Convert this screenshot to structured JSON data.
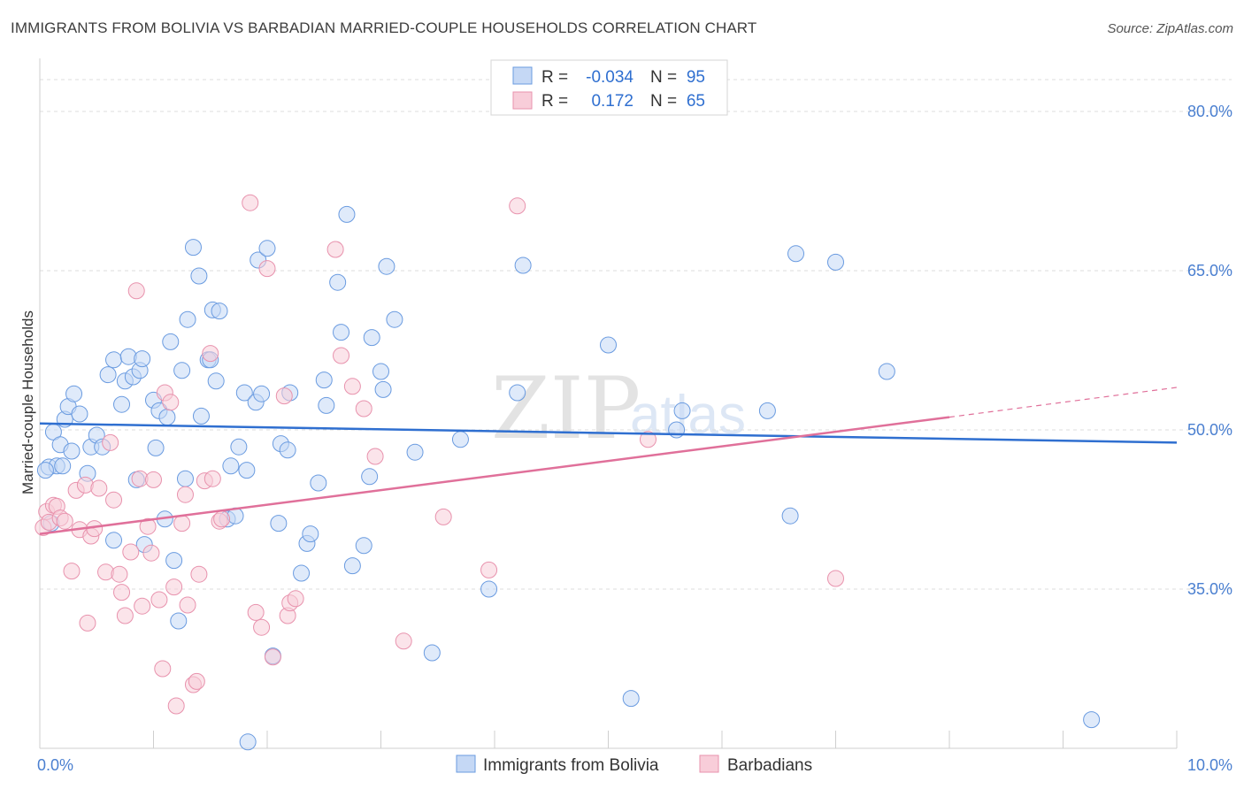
{
  "title": "IMMIGRANTS FROM BOLIVIA VS BARBADIAN MARRIED-COUPLE HOUSEHOLDS CORRELATION CHART",
  "source": "Source: ZipAtlas.com",
  "watermark": {
    "zip": "ZIP",
    "atlas": "atlas"
  },
  "legend_stats": [
    {
      "r_label": "R =",
      "r_value": "-0.034",
      "n_label": "N =",
      "n_value": "95"
    },
    {
      "r_label": "R =",
      "r_value": "0.172",
      "n_label": "N =",
      "n_value": "65"
    }
  ],
  "colors": {
    "bolivia_fill": "#c5d8f5",
    "bolivia_stroke": "#6a9be0",
    "bolivia_line": "#2f6fd0",
    "barbadian_fill": "#f8cdd9",
    "barbadian_stroke": "#e892ad",
    "barbadian_line": "#e0709a",
    "grid": "#dcdcdc",
    "tick_text": "#4a7fd0"
  },
  "chart_data": {
    "type": "scatter",
    "xlabel": "",
    "ylabel": "Married-couple Households",
    "xlim": [
      0,
      10
    ],
    "ylim": [
      20,
      84
    ],
    "x_tick_labels": [
      {
        "value": 0,
        "label": "0.0%"
      },
      {
        "value": 10,
        "label": "10.0%"
      }
    ],
    "y_tick_labels": [
      {
        "value": 35,
        "label": "35.0%"
      },
      {
        "value": 50,
        "label": "50.0%"
      },
      {
        "value": 65,
        "label": "65.0%"
      },
      {
        "value": 80,
        "label": "80.0%"
      }
    ],
    "grid": true,
    "legend_position": "top-center",
    "series": [
      {
        "name": "Immigrants from Bolivia",
        "trend": {
          "x": [
            0,
            10
          ],
          "y": [
            50.6,
            48.8
          ]
        },
        "points": [
          [
            0.08,
            46.5
          ],
          [
            0.12,
            49.8
          ],
          [
            0.15,
            46.6
          ],
          [
            0.18,
            48.6
          ],
          [
            0.2,
            46.6
          ],
          [
            0.22,
            51.0
          ],
          [
            0.25,
            52.2
          ],
          [
            0.28,
            48.0
          ],
          [
            0.3,
            53.4
          ],
          [
            0.35,
            51.5
          ],
          [
            0.42,
            45.9
          ],
          [
            0.45,
            48.4
          ],
          [
            0.5,
            49.5
          ],
          [
            0.55,
            48.4
          ],
          [
            0.6,
            55.2
          ],
          [
            0.65,
            56.6
          ],
          [
            0.65,
            39.6
          ],
          [
            0.72,
            52.4
          ],
          [
            0.75,
            54.6
          ],
          [
            0.78,
            56.9
          ],
          [
            0.82,
            55.0
          ],
          [
            0.85,
            45.3
          ],
          [
            0.88,
            55.6
          ],
          [
            0.9,
            56.7
          ],
          [
            0.92,
            39.2
          ],
          [
            1.0,
            52.8
          ],
          [
            1.02,
            48.3
          ],
          [
            1.05,
            51.8
          ],
          [
            1.1,
            41.6
          ],
          [
            1.12,
            51.2
          ],
          [
            1.15,
            58.3
          ],
          [
            1.18,
            37.7
          ],
          [
            1.22,
            32.0
          ],
          [
            1.25,
            55.6
          ],
          [
            1.28,
            45.4
          ],
          [
            1.3,
            60.4
          ],
          [
            1.35,
            67.2
          ],
          [
            1.4,
            64.5
          ],
          [
            1.42,
            51.3
          ],
          [
            1.48,
            56.6
          ],
          [
            1.5,
            56.6
          ],
          [
            1.52,
            61.3
          ],
          [
            1.55,
            54.6
          ],
          [
            1.58,
            61.2
          ],
          [
            1.65,
            41.6
          ],
          [
            1.68,
            46.6
          ],
          [
            1.72,
            41.9
          ],
          [
            1.75,
            48.4
          ],
          [
            1.8,
            53.5
          ],
          [
            1.82,
            46.2
          ],
          [
            1.83,
            20.6
          ],
          [
            1.9,
            52.6
          ],
          [
            1.92,
            66.0
          ],
          [
            1.95,
            53.4
          ],
          [
            2.0,
            67.1
          ],
          [
            2.05,
            28.7
          ],
          [
            2.1,
            41.2
          ],
          [
            2.12,
            48.7
          ],
          [
            2.18,
            48.1
          ],
          [
            2.2,
            53.5
          ],
          [
            2.3,
            36.5
          ],
          [
            2.35,
            39.3
          ],
          [
            2.38,
            40.2
          ],
          [
            2.45,
            45.0
          ],
          [
            2.5,
            54.7
          ],
          [
            2.52,
            52.3
          ],
          [
            2.62,
            63.9
          ],
          [
            2.65,
            59.2
          ],
          [
            2.7,
            70.3
          ],
          [
            2.75,
            37.2
          ],
          [
            2.85,
            39.1
          ],
          [
            2.9,
            45.6
          ],
          [
            2.92,
            58.7
          ],
          [
            3.0,
            55.5
          ],
          [
            3.02,
            53.8
          ],
          [
            3.05,
            65.4
          ],
          [
            3.12,
            60.4
          ],
          [
            3.3,
            47.9
          ],
          [
            3.45,
            29.0
          ],
          [
            3.7,
            49.1
          ],
          [
            3.95,
            35.0
          ],
          [
            4.2,
            53.5
          ],
          [
            4.25,
            65.5
          ],
          [
            5.0,
            58.0
          ],
          [
            5.2,
            24.7
          ],
          [
            5.6,
            50.0
          ],
          [
            5.65,
            51.8
          ],
          [
            6.4,
            51.8
          ],
          [
            6.6,
            41.9
          ],
          [
            6.65,
            66.6
          ],
          [
            7.0,
            65.8
          ],
          [
            7.45,
            55.5
          ],
          [
            9.25,
            22.7
          ],
          [
            0.05,
            46.2
          ],
          [
            0.1,
            41.2
          ]
        ]
      },
      {
        "name": "Barbadians",
        "trend": {
          "x": [
            0,
            8.0
          ],
          "y": [
            40.2,
            51.2
          ]
        },
        "trend_dashed": {
          "x": [
            8.0,
            10
          ],
          "y": [
            51.2,
            54.0
          ]
        },
        "points": [
          [
            0.03,
            40.8
          ],
          [
            0.06,
            42.3
          ],
          [
            0.08,
            41.3
          ],
          [
            0.12,
            42.9
          ],
          [
            0.15,
            42.8
          ],
          [
            0.18,
            41.7
          ],
          [
            0.22,
            41.4
          ],
          [
            0.28,
            36.7
          ],
          [
            0.32,
            44.3
          ],
          [
            0.35,
            40.6
          ],
          [
            0.4,
            44.8
          ],
          [
            0.42,
            31.8
          ],
          [
            0.45,
            40.0
          ],
          [
            0.48,
            40.7
          ],
          [
            0.52,
            44.5
          ],
          [
            0.58,
            36.6
          ],
          [
            0.62,
            48.8
          ],
          [
            0.65,
            43.4
          ],
          [
            0.7,
            36.4
          ],
          [
            0.72,
            34.7
          ],
          [
            0.75,
            32.5
          ],
          [
            0.8,
            38.5
          ],
          [
            0.85,
            63.1
          ],
          [
            0.88,
            45.4
          ],
          [
            0.9,
            33.4
          ],
          [
            0.95,
            40.9
          ],
          [
            0.98,
            38.4
          ],
          [
            1.0,
            45.3
          ],
          [
            1.05,
            34.0
          ],
          [
            1.08,
            27.5
          ],
          [
            1.1,
            53.5
          ],
          [
            1.15,
            52.6
          ],
          [
            1.18,
            35.2
          ],
          [
            1.2,
            24.0
          ],
          [
            1.25,
            41.2
          ],
          [
            1.28,
            43.9
          ],
          [
            1.3,
            33.5
          ],
          [
            1.35,
            26.0
          ],
          [
            1.38,
            26.3
          ],
          [
            1.4,
            36.4
          ],
          [
            1.45,
            45.2
          ],
          [
            1.5,
            57.2
          ],
          [
            1.52,
            45.4
          ],
          [
            1.58,
            41.4
          ],
          [
            1.6,
            41.6
          ],
          [
            1.85,
            71.4
          ],
          [
            1.9,
            32.8
          ],
          [
            1.95,
            31.4
          ],
          [
            2.0,
            65.2
          ],
          [
            2.05,
            28.6
          ],
          [
            2.15,
            53.2
          ],
          [
            2.18,
            32.5
          ],
          [
            2.2,
            33.7
          ],
          [
            2.25,
            34.1
          ],
          [
            2.6,
            67.0
          ],
          [
            2.65,
            57.0
          ],
          [
            2.75,
            54.1
          ],
          [
            2.85,
            52.0
          ],
          [
            2.95,
            47.5
          ],
          [
            3.2,
            30.1
          ],
          [
            3.55,
            41.8
          ],
          [
            3.95,
            36.8
          ],
          [
            4.2,
            71.1
          ],
          [
            5.35,
            49.1
          ],
          [
            7.0,
            36.0
          ]
        ]
      }
    ]
  },
  "bottom_legend": [
    "Immigrants from Bolivia",
    "Barbadians"
  ]
}
